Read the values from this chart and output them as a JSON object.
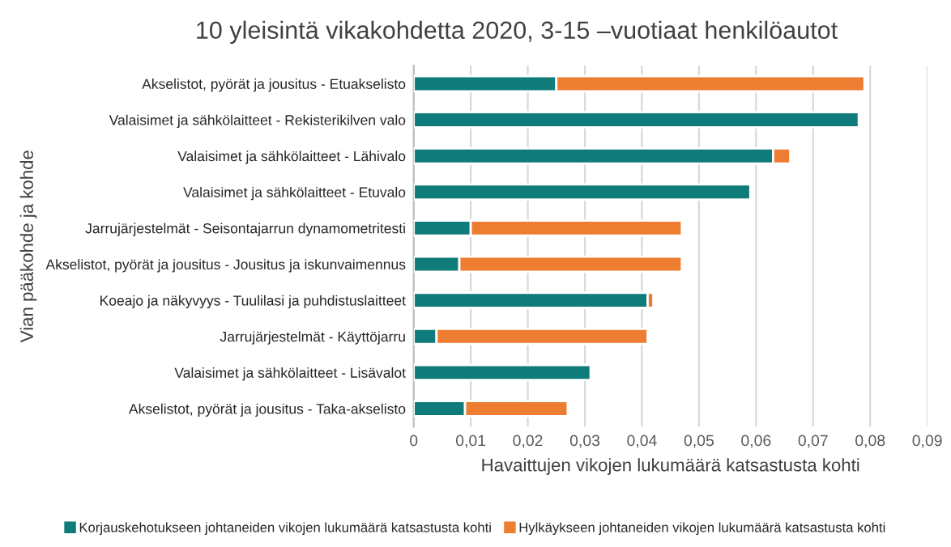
{
  "chart_data": {
    "type": "bar",
    "orientation": "horizontal",
    "stacked": true,
    "title": "10 yleisintä vikakohdetta 2020, 3-15 –vuotiaat henkilöautot",
    "xlabel": "Havaittujen vikojen lukumäärä katsastusta kohti",
    "ylabel": "Vian pääkohde ja kohde",
    "categories": [
      "Akselistot, pyörät ja jousitus - Etuakselisto",
      "Valaisimet ja sähkölaitteet - Rekisterikilven valo",
      "Valaisimet ja sähkölaitteet - Lähivalo",
      "Valaisimet ja sähkölaitteet - Etuvalo",
      "Jarrujärjestelmät - Seisontajarrun dynamometritesti",
      "Akselistot, pyörät ja jousitus - Jousitus ja iskunvaimennus",
      "Koeajo ja näkyvyys - Tuulilasi ja puhdistuslaitteet",
      "Jarrujärjestelmät - Käyttöjarru",
      "Valaisimet ja sähkölaitteet - Lisävalot",
      "Akselistot, pyörät ja jousitus - Taka-akselisto"
    ],
    "series": [
      {
        "name": "Korjauskehotukseen johtaneiden vikojen lukumäärä katsastusta kohti",
        "color": "#0f7b7b",
        "values": [
          0.025,
          0.078,
          0.063,
          0.059,
          0.01,
          0.008,
          0.041,
          0.004,
          0.031,
          0.009
        ]
      },
      {
        "name": "Hylkäykseen johtaneiden vikojen lukumäärä katsastusta kohti",
        "color": "#ed7d31",
        "values": [
          0.054,
          null,
          0.003,
          null,
          0.037,
          0.039,
          0.001,
          0.037,
          null,
          0.018
        ]
      }
    ],
    "xlim": [
      0,
      0.09
    ],
    "xticks": [
      {
        "value": 0,
        "label": "0"
      },
      {
        "value": 0.01,
        "label": "0,01"
      },
      {
        "value": 0.02,
        "label": "0,02"
      },
      {
        "value": 0.03,
        "label": "0,03"
      },
      {
        "value": 0.04,
        "label": "0,04"
      },
      {
        "value": 0.05,
        "label": "0,05"
      },
      {
        "value": 0.06,
        "label": "0,06"
      },
      {
        "value": 0.07,
        "label": "0,07"
      },
      {
        "value": 0.08,
        "label": "0,08"
      },
      {
        "value": 0.09,
        "label": "0,09"
      }
    ],
    "grid": "x",
    "legend": "bottom"
  }
}
